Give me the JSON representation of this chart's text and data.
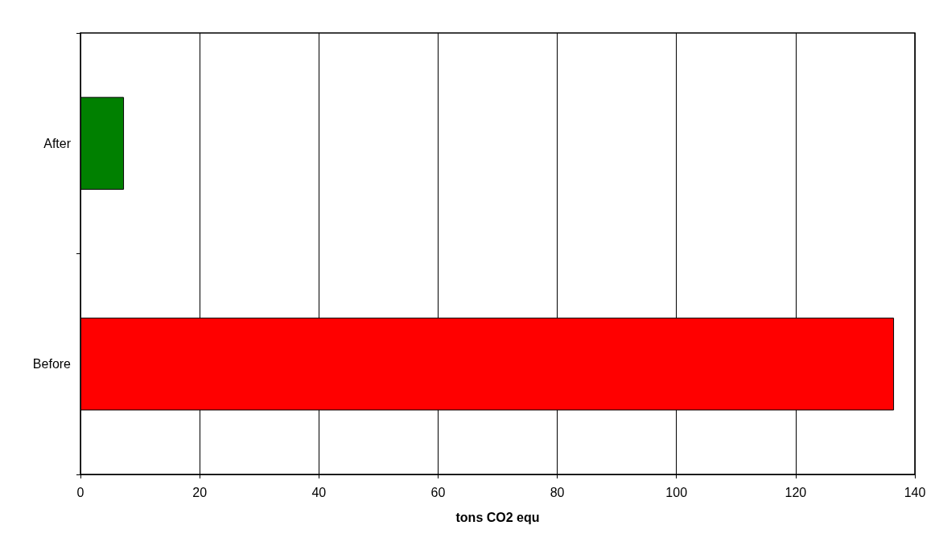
{
  "chart_data": {
    "type": "bar",
    "orientation": "horizontal",
    "xlabel": "tons CO2 equ",
    "categories": [
      "After",
      "Before"
    ],
    "values": [
      7.3,
      136.5
    ],
    "colors": [
      "#008000",
      "#ff0000"
    ],
    "xlim": [
      0,
      140
    ],
    "xticks": [
      0,
      20,
      40,
      60,
      80,
      100,
      120,
      140
    ],
    "grid": "x"
  }
}
